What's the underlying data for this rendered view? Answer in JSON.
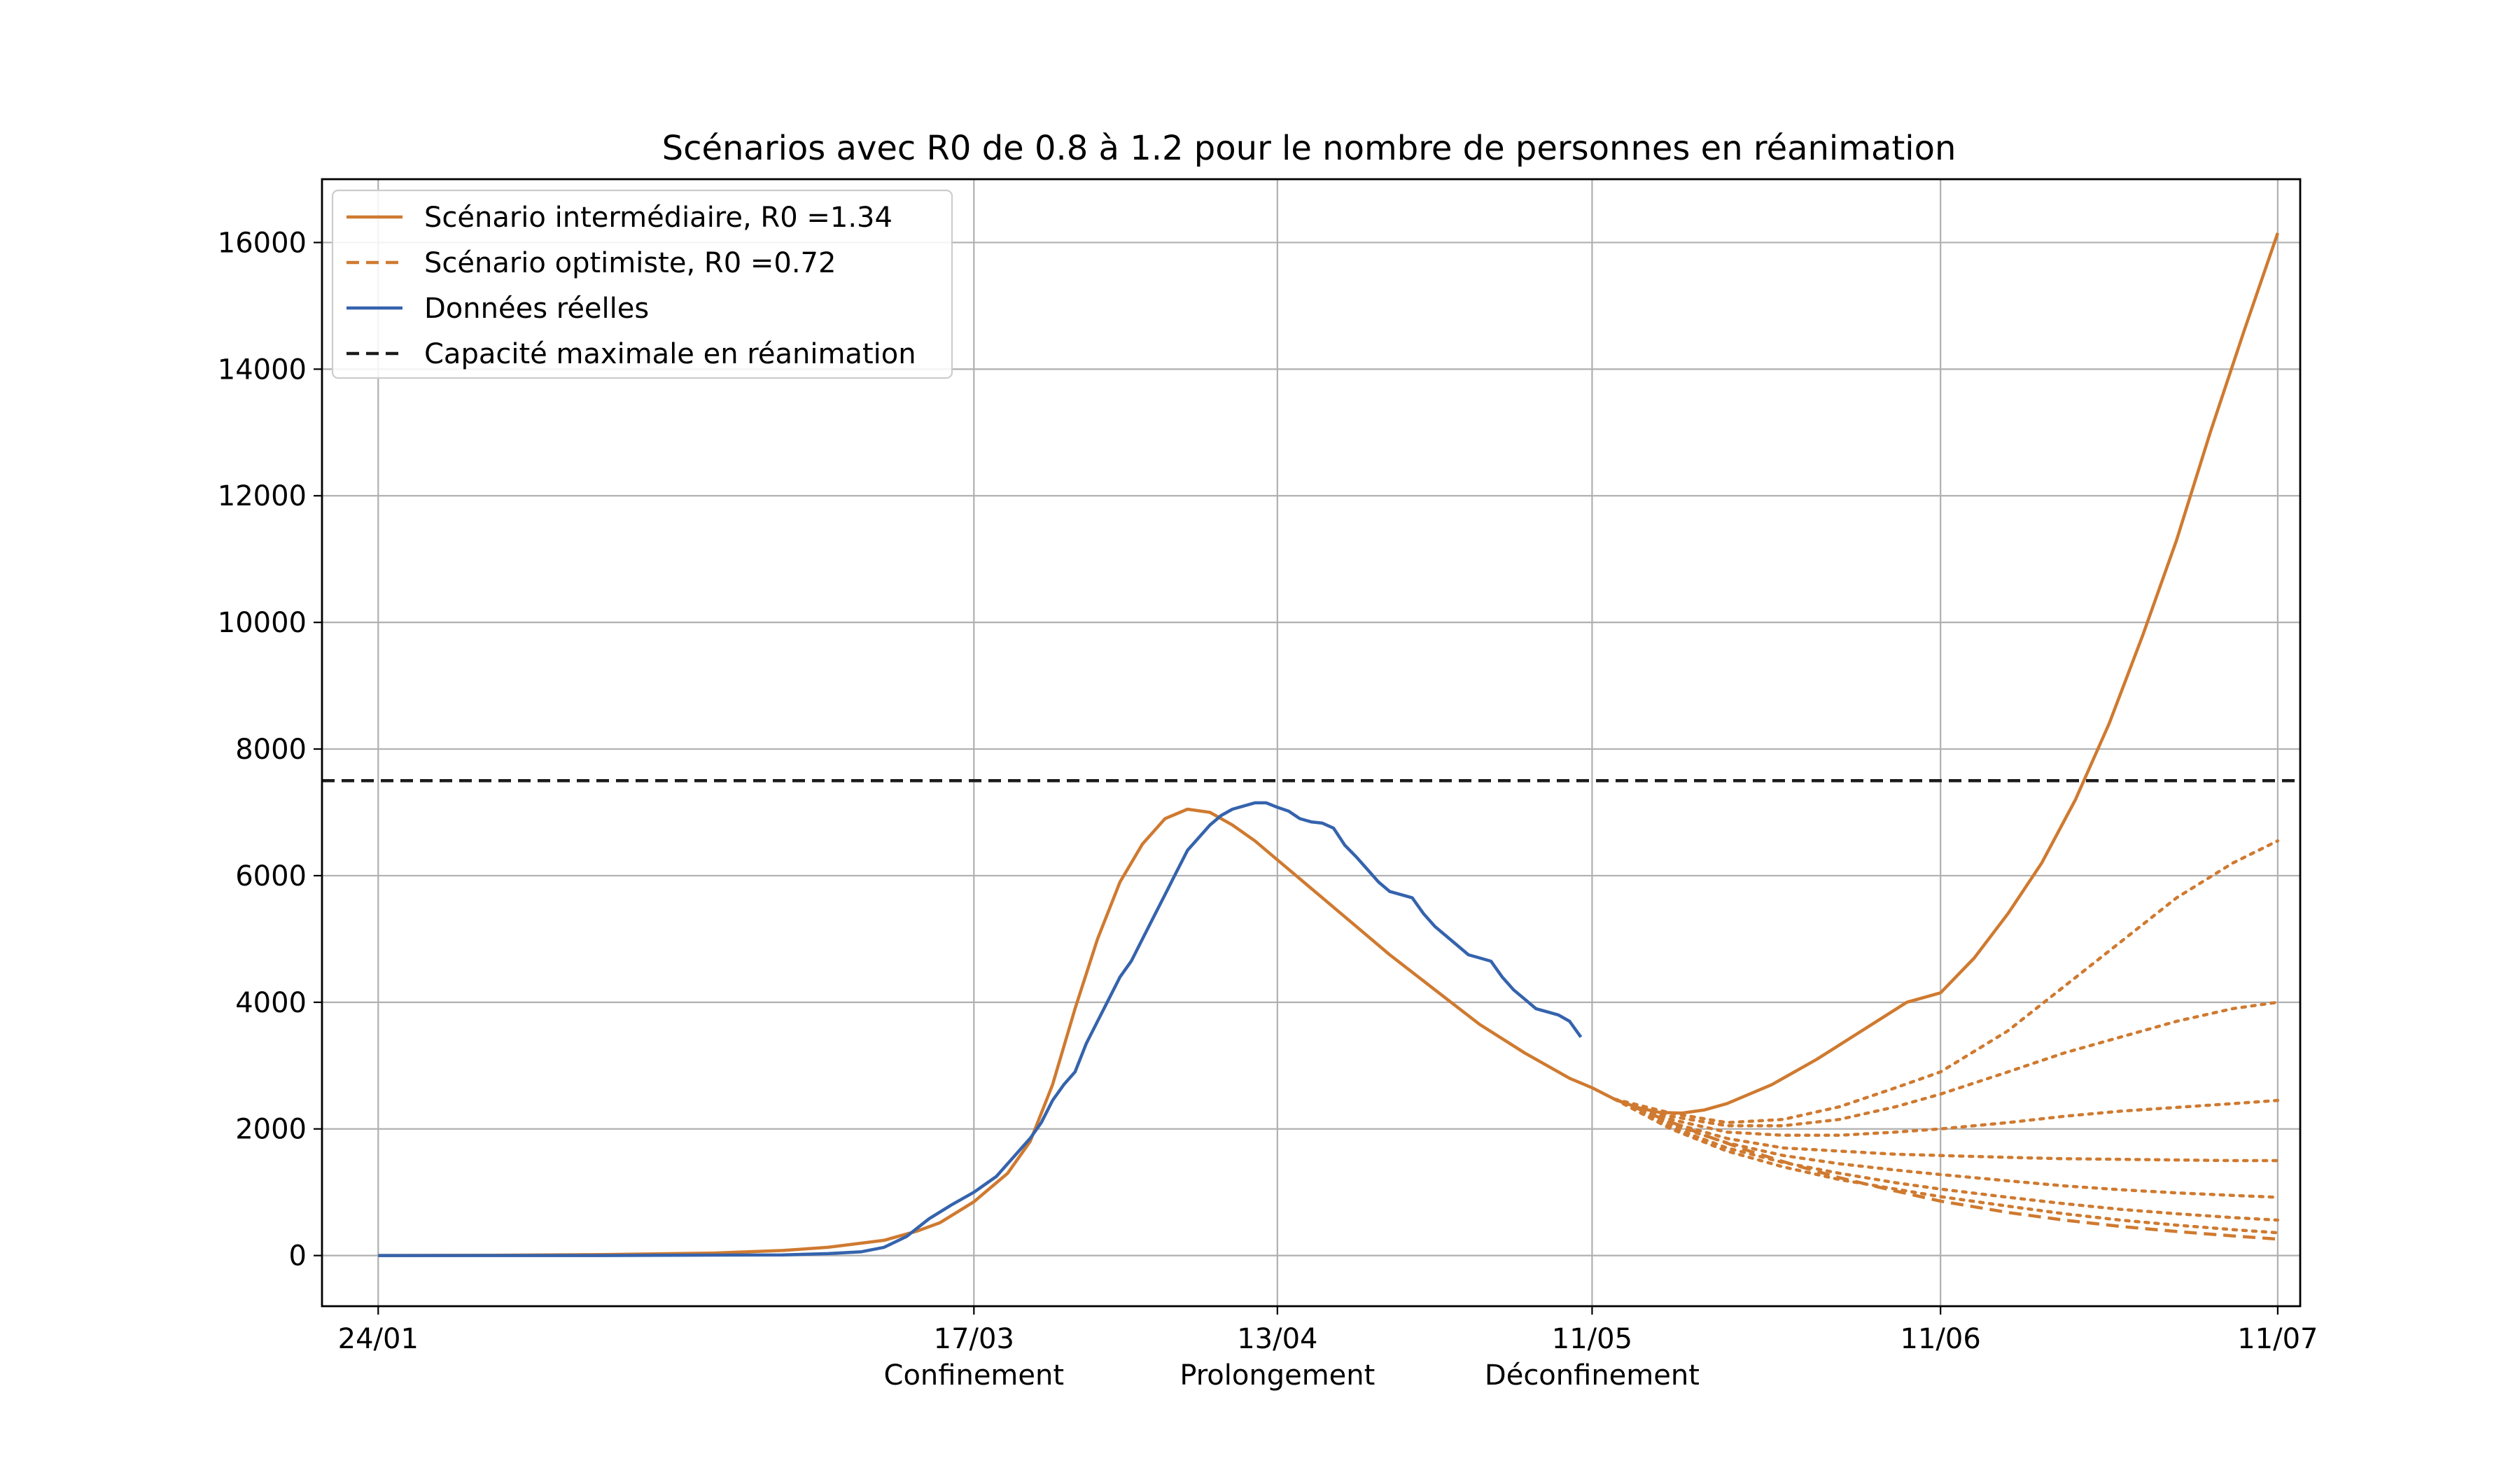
{
  "chart_data": {
    "type": "line",
    "title": "Scénarios avec R0 de 0.8 à 1.2 pour le nombre de personnes en réanimation",
    "xlabel": "",
    "ylabel": "",
    "grid": true,
    "legend_position": "top-left",
    "x_axis": {
      "range_days": [
        -5,
        171
      ],
      "ticks": [
        {
          "day": 0,
          "label": "24/01",
          "sublabel": ""
        },
        {
          "day": 53,
          "label": "17/03",
          "sublabel": "Confinement"
        },
        {
          "day": 80,
          "label": "13/04",
          "sublabel": "Prolongement"
        },
        {
          "day": 108,
          "label": "11/05",
          "sublabel": "Déconfinement"
        },
        {
          "day": 139,
          "label": "11/06",
          "sublabel": ""
        },
        {
          "day": 169,
          "label": "11/07",
          "sublabel": ""
        }
      ]
    },
    "y_axis": {
      "ylim": [
        -800,
        17000
      ],
      "ticks": [
        0,
        2000,
        4000,
        6000,
        8000,
        10000,
        12000,
        14000,
        16000
      ]
    },
    "legend": [
      {
        "label": "Scénario intermédiaire, R0 =1.34",
        "style": "solid",
        "color": "#cf7a30"
      },
      {
        "label": "Scénario optimiste, R0 =0.72",
        "style": "dashed",
        "color": "#cf7a30"
      },
      {
        "label": "Données réelles",
        "style": "solid",
        "color": "#3563ad"
      },
      {
        "label": "Capacité maximale en réanimation",
        "style": "dashed",
        "color": "#1b1b1b"
      }
    ],
    "capacity_value": 7500,
    "series": [
      {
        "name": "Scénario intermédiaire, R0 =1.34",
        "style": "solid",
        "color": "#cf7a30",
        "points": [
          [
            0,
            0
          ],
          [
            10,
            5
          ],
          [
            20,
            15
          ],
          [
            30,
            40
          ],
          [
            36,
            80
          ],
          [
            40,
            130
          ],
          [
            45,
            240
          ],
          [
            48,
            390
          ],
          [
            50,
            520
          ],
          [
            53,
            850
          ],
          [
            56,
            1300
          ],
          [
            58,
            1800
          ],
          [
            60,
            2700
          ],
          [
            62,
            3900
          ],
          [
            64,
            5000
          ],
          [
            66,
            5900
          ],
          [
            68,
            6500
          ],
          [
            70,
            6900
          ],
          [
            72,
            7050
          ],
          [
            74,
            7000
          ],
          [
            76,
            6800
          ],
          [
            78,
            6550
          ],
          [
            80,
            6250
          ],
          [
            83,
            5800
          ],
          [
            86,
            5350
          ],
          [
            90,
            4750
          ],
          [
            94,
            4200
          ],
          [
            98,
            3650
          ],
          [
            102,
            3200
          ],
          [
            106,
            2800
          ],
          [
            108,
            2650
          ],
          [
            110,
            2470
          ],
          [
            112,
            2340
          ],
          [
            114,
            2260
          ],
          [
            116,
            2250
          ],
          [
            118,
            2300
          ],
          [
            120,
            2400
          ],
          [
            124,
            2700
          ],
          [
            128,
            3100
          ],
          [
            132,
            3550
          ],
          [
            136,
            4000
          ],
          [
            139,
            4150
          ],
          [
            142,
            4700
          ],
          [
            145,
            5400
          ],
          [
            148,
            6200
          ],
          [
            151,
            7200
          ],
          [
            154,
            8400
          ],
          [
            157,
            9800
          ],
          [
            160,
            11300
          ],
          [
            163,
            13000
          ],
          [
            166,
            14600
          ],
          [
            169,
            16150
          ]
        ]
      },
      {
        "name": "Scénario optimiste, R0 =0.72",
        "style": "dashed",
        "color": "#cf7a30",
        "points": [
          [
            110,
            2470
          ],
          [
            114,
            2180
          ],
          [
            118,
            1900
          ],
          [
            122,
            1650
          ],
          [
            126,
            1430
          ],
          [
            130,
            1230
          ],
          [
            134,
            1060
          ],
          [
            139,
            860
          ],
          [
            145,
            680
          ],
          [
            150,
            560
          ],
          [
            155,
            460
          ],
          [
            160,
            380
          ],
          [
            165,
            310
          ],
          [
            169,
            260
          ]
        ]
      },
      {
        "name": "",
        "style": "dotted",
        "color": "#cf7a30",
        "points": [
          [
            110,
            2470
          ],
          [
            115,
            2250
          ],
          [
            120,
            2100
          ],
          [
            125,
            2150
          ],
          [
            130,
            2350
          ],
          [
            135,
            2650
          ],
          [
            139,
            2900
          ],
          [
            145,
            3550
          ],
          [
            150,
            4250
          ],
          [
            155,
            4950
          ],
          [
            160,
            5650
          ],
          [
            165,
            6200
          ],
          [
            169,
            6550
          ]
        ]
      },
      {
        "name": "",
        "style": "dotted",
        "color": "#cf7a30",
        "points": [
          [
            110,
            2470
          ],
          [
            115,
            2200
          ],
          [
            120,
            2050
          ],
          [
            125,
            2050
          ],
          [
            130,
            2150
          ],
          [
            135,
            2350
          ],
          [
            139,
            2550
          ],
          [
            145,
            2900
          ],
          [
            150,
            3200
          ],
          [
            155,
            3450
          ],
          [
            160,
            3700
          ],
          [
            165,
            3900
          ],
          [
            169,
            4000
          ]
        ]
      },
      {
        "name": "",
        "style": "dotted",
        "color": "#cf7a30",
        "points": [
          [
            110,
            2470
          ],
          [
            115,
            2150
          ],
          [
            120,
            1950
          ],
          [
            125,
            1900
          ],
          [
            130,
            1900
          ],
          [
            135,
            1950
          ],
          [
            139,
            2000
          ],
          [
            145,
            2100
          ],
          [
            150,
            2200
          ],
          [
            155,
            2280
          ],
          [
            160,
            2340
          ],
          [
            165,
            2400
          ],
          [
            169,
            2450
          ]
        ]
      },
      {
        "name": "",
        "style": "dotted",
        "color": "#cf7a30",
        "points": [
          [
            110,
            2470
          ],
          [
            115,
            2100
          ],
          [
            120,
            1850
          ],
          [
            125,
            1700
          ],
          [
            130,
            1650
          ],
          [
            135,
            1600
          ],
          [
            139,
            1580
          ],
          [
            145,
            1550
          ],
          [
            150,
            1530
          ],
          [
            155,
            1520
          ],
          [
            160,
            1510
          ],
          [
            165,
            1500
          ],
          [
            169,
            1500
          ]
        ]
      },
      {
        "name": "",
        "style": "dotted",
        "color": "#cf7a30",
        "points": [
          [
            110,
            2470
          ],
          [
            115,
            2070
          ],
          [
            120,
            1780
          ],
          [
            125,
            1580
          ],
          [
            130,
            1450
          ],
          [
            135,
            1350
          ],
          [
            139,
            1280
          ],
          [
            145,
            1180
          ],
          [
            150,
            1100
          ],
          [
            155,
            1040
          ],
          [
            160,
            990
          ],
          [
            165,
            950
          ],
          [
            169,
            920
          ]
        ]
      },
      {
        "name": "",
        "style": "dotted",
        "color": "#cf7a30",
        "points": [
          [
            110,
            2470
          ],
          [
            115,
            2030
          ],
          [
            120,
            1700
          ],
          [
            125,
            1470
          ],
          [
            130,
            1300
          ],
          [
            135,
            1150
          ],
          [
            139,
            1050
          ],
          [
            145,
            920
          ],
          [
            150,
            820
          ],
          [
            155,
            730
          ],
          [
            160,
            660
          ],
          [
            165,
            600
          ],
          [
            169,
            560
          ]
        ]
      },
      {
        "name": "",
        "style": "dotted",
        "color": "#cf7a30",
        "points": [
          [
            110,
            2470
          ],
          [
            115,
            2000
          ],
          [
            120,
            1650
          ],
          [
            125,
            1400
          ],
          [
            130,
            1200
          ],
          [
            135,
            1050
          ],
          [
            139,
            930
          ],
          [
            145,
            780
          ],
          [
            150,
            660
          ],
          [
            155,
            560
          ],
          [
            160,
            480
          ],
          [
            165,
            410
          ],
          [
            169,
            360
          ]
        ]
      },
      {
        "name": "Données réelles",
        "style": "solid",
        "color": "#3563ad",
        "points": [
          [
            0,
            0
          ],
          [
            20,
            0
          ],
          [
            36,
            10
          ],
          [
            40,
            30
          ],
          [
            43,
            60
          ],
          [
            45,
            130
          ],
          [
            47,
            300
          ],
          [
            49,
            580
          ],
          [
            51,
            800
          ],
          [
            53,
            1000
          ],
          [
            55,
            1250
          ],
          [
            57,
            1650
          ],
          [
            58,
            1850
          ],
          [
            59,
            2100
          ],
          [
            60,
            2450
          ],
          [
            61,
            2700
          ],
          [
            62,
            2900
          ],
          [
            63,
            3350
          ],
          [
            64,
            3700
          ],
          [
            65,
            4050
          ],
          [
            66,
            4400
          ],
          [
            67,
            4650
          ],
          [
            68,
            5000
          ],
          [
            69,
            5350
          ],
          [
            70,
            5700
          ],
          [
            71,
            6050
          ],
          [
            72,
            6400
          ],
          [
            73,
            6600
          ],
          [
            74,
            6800
          ],
          [
            75,
            6950
          ],
          [
            76,
            7050
          ],
          [
            77,
            7100
          ],
          [
            78,
            7150
          ],
          [
            79,
            7150
          ],
          [
            80,
            7080
          ],
          [
            81,
            7020
          ],
          [
            82,
            6900
          ],
          [
            83,
            6850
          ],
          [
            84,
            6830
          ],
          [
            85,
            6750
          ],
          [
            86,
            6480
          ],
          [
            87,
            6300
          ],
          [
            88,
            6100
          ],
          [
            89,
            5900
          ],
          [
            90,
            5750
          ],
          [
            91,
            5700
          ],
          [
            92,
            5650
          ],
          [
            93,
            5400
          ],
          [
            94,
            5200
          ],
          [
            95,
            5050
          ],
          [
            96,
            4900
          ],
          [
            97,
            4750
          ],
          [
            98,
            4700
          ],
          [
            99,
            4650
          ],
          [
            100,
            4400
          ],
          [
            101,
            4200
          ],
          [
            102,
            4050
          ],
          [
            103,
            3900
          ],
          [
            104,
            3850
          ],
          [
            105,
            3800
          ],
          [
            106,
            3700
          ],
          [
            107,
            3450
          ]
        ]
      }
    ]
  }
}
